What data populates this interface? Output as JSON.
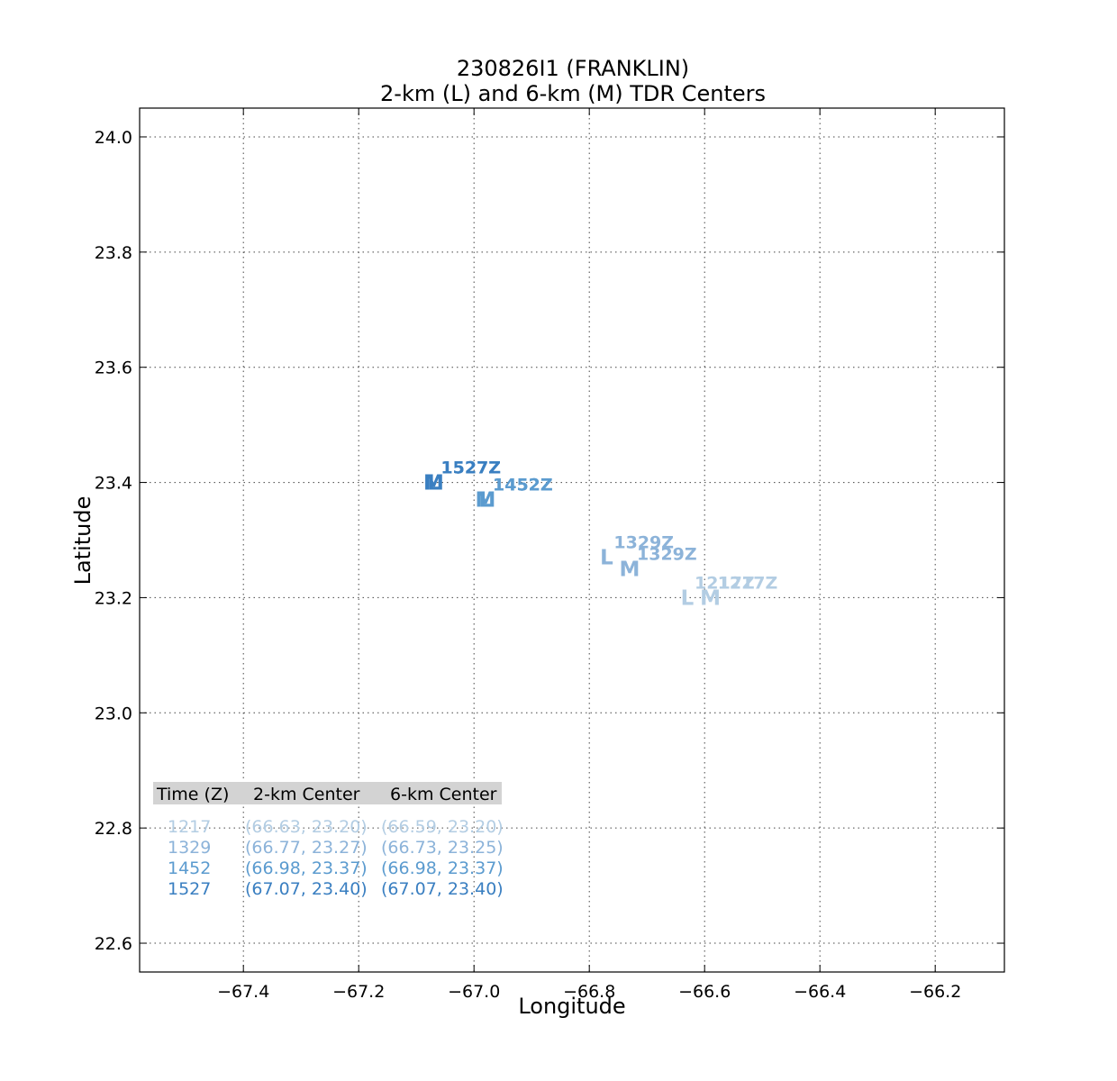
{
  "chart_data": {
    "type": "scatter",
    "title": "230826I1 (FRANKLIN)",
    "subtitle": "2-km (L) and 6-km (M) TDR Centers",
    "xlabel": "Longitude",
    "ylabel": "Latitude",
    "xlim": [
      -67.58,
      -66.08
    ],
    "ylim": [
      22.55,
      24.05
    ],
    "xticks": [
      -67.4,
      -67.2,
      -67.0,
      -66.8,
      -66.6,
      -66.4,
      -66.2
    ],
    "xtick_labels": [
      "−67.4",
      "−67.2",
      "−67.0",
      "−66.8",
      "−66.6",
      "−66.4",
      "−66.2"
    ],
    "yticks": [
      22.6,
      22.8,
      23.0,
      23.2,
      23.4,
      23.6,
      23.8,
      24.0
    ],
    "ytick_labels": [
      "22.6",
      "22.8",
      "23.0",
      "23.2",
      "23.4",
      "23.6",
      "23.8",
      "24.0"
    ],
    "grid": true,
    "series": [
      {
        "marker": "L",
        "points": [
          {
            "time": "1217",
            "x": -66.63,
            "y": 23.2,
            "label": "1217Z",
            "color": "#b3cde3"
          },
          {
            "time": "1329",
            "x": -66.77,
            "y": 23.27,
            "label": "1329Z",
            "color": "#8cb3d9"
          },
          {
            "time": "1452",
            "x": -66.98,
            "y": 23.37,
            "label": "1452Z",
            "color": "#5b9bcf"
          },
          {
            "time": "1527",
            "x": -67.07,
            "y": 23.4,
            "label": "1527Z",
            "color": "#3a7fc1"
          }
        ]
      },
      {
        "marker": "M",
        "points": [
          {
            "time": "1217",
            "x": -66.59,
            "y": 23.2,
            "label": "1217Z",
            "color": "#b3cde3"
          },
          {
            "time": "1329",
            "x": -66.73,
            "y": 23.25,
            "label": "1329Z",
            "color": "#8cb3d9"
          },
          {
            "time": "1452",
            "x": -66.98,
            "y": 23.37,
            "label": "1452Z",
            "color": "#5b9bcf"
          },
          {
            "time": "1527",
            "x": -67.07,
            "y": 23.4,
            "label": "1527Z",
            "color": "#3a7fc1"
          }
        ]
      }
    ],
    "table": {
      "headers": [
        "Time (Z)",
        "2-km Center",
        "6-km Center"
      ],
      "rows": [
        {
          "time": "1217",
          "c2": "(66.63, 23.20)",
          "c6": "(66.59, 23.20)",
          "color": "#b3cde3"
        },
        {
          "time": "1329",
          "c2": "(66.77, 23.27)",
          "c6": "(66.73, 23.25)",
          "color": "#8cb3d9"
        },
        {
          "time": "1452",
          "c2": "(66.98, 23.37)",
          "c6": "(66.98, 23.37)",
          "color": "#5b9bcf"
        },
        {
          "time": "1527",
          "c2": "(67.07, 23.40)",
          "c6": "(67.07, 23.40)",
          "color": "#3a7fc1"
        }
      ],
      "header_bg": "#d3d3d3"
    }
  }
}
